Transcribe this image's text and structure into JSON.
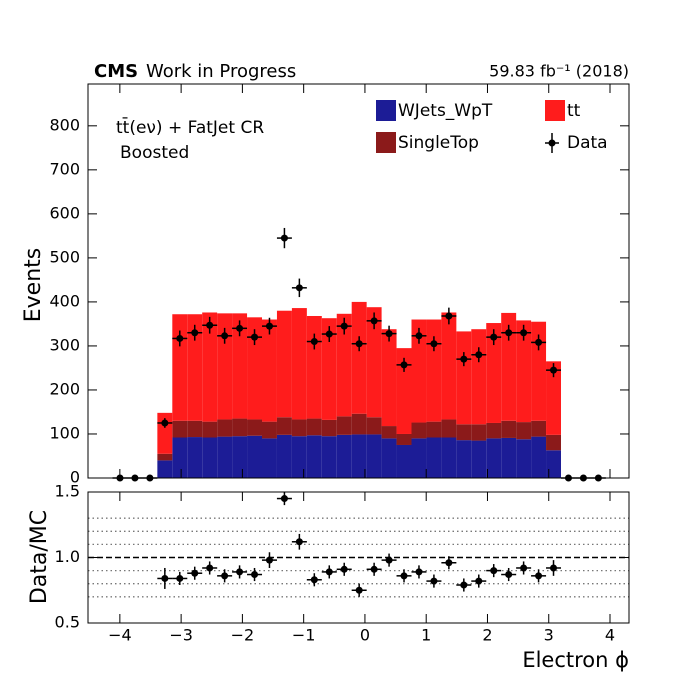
{
  "chart_data": [
    {
      "type": "histogram",
      "experiment": "CMS",
      "status": "Work in Progress",
      "luminosity": "59.83 fb⁻¹ (2018)",
      "annotations": [
        "tt̄(eν) + FatJet CR",
        "Boosted"
      ],
      "ylabel": "Events",
      "bins": [
        -4.12,
        -3.876,
        -3.632,
        -3.388,
        -3.144,
        -2.9,
        -2.656,
        -2.412,
        -2.168,
        -1.924,
        -1.68,
        -1.436,
        -1.192,
        -0.948,
        -0.704,
        -0.46,
        -0.216,
        0.028,
        0.272,
        0.516,
        0.76,
        1.004,
        1.248,
        1.492,
        1.736,
        1.98,
        2.224,
        2.468,
        2.712,
        2.956,
        3.2,
        3.444,
        3.688,
        3.932
      ],
      "series": [
        {
          "name": "WJets_WpT",
          "color": "#1c1c96",
          "values": [
            0,
            0,
            0,
            40,
            92,
            93,
            92,
            94,
            95,
            96,
            90,
            98,
            95,
            97,
            95,
            98,
            99,
            99,
            90,
            75,
            90,
            92,
            92,
            86,
            85,
            90,
            91,
            88,
            94,
            63,
            0,
            0,
            0
          ]
        },
        {
          "name": "SingleTop",
          "color": "#8b1a1a",
          "values": [
            0,
            0,
            0,
            15,
            38,
            37,
            36,
            39,
            40,
            37,
            38,
            40,
            38,
            38,
            37,
            42,
            47,
            39,
            28,
            25,
            36,
            36,
            41,
            36,
            37,
            35,
            39,
            39,
            36,
            35,
            0,
            0,
            0
          ]
        },
        {
          "name": "tt",
          "color": "#ff1c1c",
          "values": [
            0,
            0,
            0,
            93,
            242,
            242,
            248,
            241,
            239,
            232,
            232,
            242,
            253,
            233,
            231,
            233,
            254,
            250,
            220,
            195,
            234,
            232,
            243,
            211,
            216,
            227,
            245,
            231,
            225,
            167,
            0,
            0,
            0
          ]
        }
      ],
      "data": {
        "name": "Data",
        "color": "#000000",
        "values": [
          0,
          0,
          0,
          125,
          317,
          330,
          347,
          323,
          340,
          320,
          345,
          545,
          432,
          310,
          327,
          345,
          305,
          357,
          328,
          257,
          323,
          305,
          368,
          270,
          280,
          320,
          330,
          330,
          308,
          245,
          0,
          0,
          0
        ],
        "errors": [
          0,
          0,
          0,
          11,
          18,
          18,
          19,
          18,
          18,
          18,
          19,
          23,
          21,
          18,
          18,
          19,
          17,
          19,
          18,
          16,
          18,
          17,
          19,
          16,
          17,
          18,
          18,
          18,
          18,
          16,
          0,
          0,
          0
        ]
      },
      "xlim": [
        -4.52,
        4.31
      ],
      "ylim": [
        0,
        895
      ],
      "xticks": [
        -4,
        -3,
        -2,
        -1,
        0,
        1,
        2,
        3,
        4
      ],
      "yticks": [
        0,
        100,
        200,
        300,
        400,
        500,
        600,
        700,
        800
      ],
      "legend": "upper right"
    },
    {
      "type": "scatter",
      "ylabel": "Data/MC",
      "xlabel": "Electron ϕ",
      "x": [
        -3.266,
        -3.022,
        -2.778,
        -2.534,
        -2.29,
        -2.046,
        -1.802,
        -1.558,
        -1.314,
        -1.07,
        -0.826,
        -0.582,
        -0.338,
        -0.094,
        0.15,
        0.394,
        0.638,
        0.882,
        1.126,
        1.37,
        1.614,
        1.858,
        2.102,
        2.346,
        2.59,
        2.834,
        3.078
      ],
      "values": [
        0.84,
        0.84,
        0.88,
        0.92,
        0.86,
        0.89,
        0.87,
        0.98,
        1.45,
        1.12,
        0.83,
        0.89,
        0.91,
        0.75,
        0.91,
        0.98,
        0.86,
        0.89,
        0.82,
        0.96,
        0.79,
        0.82,
        0.9,
        0.87,
        0.92,
        0.86,
        0.92
      ],
      "errors": [
        0.08,
        0.05,
        0.05,
        0.05,
        0.05,
        0.05,
        0.05,
        0.06,
        0.05,
        0.06,
        0.05,
        0.05,
        0.05,
        0.05,
        0.05,
        0.05,
        0.05,
        0.05,
        0.05,
        0.05,
        0.05,
        0.05,
        0.05,
        0.05,
        0.05,
        0.05,
        0.06
      ],
      "color": "#000000",
      "xlim": [
        -4.52,
        4.31
      ],
      "ylim": [
        0.5,
        1.5
      ],
      "xticks": [
        {
          "value": -4,
          "label": "−4"
        },
        {
          "value": -3,
          "label": "−3"
        },
        {
          "value": -2,
          "label": "−2"
        },
        {
          "value": -1,
          "label": "−1"
        },
        0,
        1,
        2,
        3,
        4
      ],
      "yticks": [
        {
          "value": 0.5,
          "label": "0.5"
        },
        {
          "value": 1,
          "label": "1.0"
        },
        {
          "value": 1.5,
          "label": "1.5"
        }
      ],
      "reference_line": 1,
      "grid_lines": [
        0.7,
        0.8,
        0.9,
        1.1,
        1.2,
        1.3
      ]
    }
  ]
}
